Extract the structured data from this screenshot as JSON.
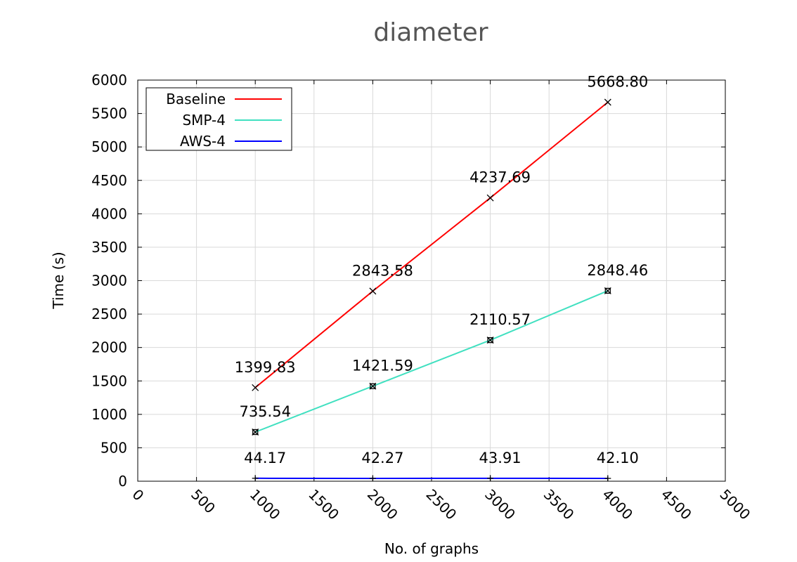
{
  "chart_data": {
    "type": "line",
    "title": "diameter",
    "xlabel": "No. of graphs",
    "ylabel": "Time (s)",
    "xlim": [
      0,
      5000
    ],
    "ylim": [
      0,
      6000
    ],
    "xticks": [
      "0",
      "500",
      "1000",
      "1500",
      "2000",
      "2500",
      "3000",
      "3500",
      "4000",
      "4500",
      "5000"
    ],
    "yticks": [
      "0",
      "500",
      "1000",
      "1500",
      "2000",
      "2500",
      "3000",
      "3500",
      "4000",
      "4500",
      "5000",
      "5500",
      "6000"
    ],
    "grid": true,
    "legend_position": "top-left",
    "x": [
      1000,
      2000,
      3000,
      4000
    ],
    "series": [
      {
        "name": "Baseline",
        "color": "#ff0000",
        "marker": "x",
        "values": [
          1399.83,
          2843.58,
          4237.69,
          5668.8
        ],
        "labels": [
          "1399.83",
          "2843.58",
          "4237.69",
          "5668.80"
        ]
      },
      {
        "name": "SMP-4",
        "color": "#40e0c0",
        "marker": "square-x",
        "values": [
          735.54,
          1421.59,
          2110.57,
          2848.46
        ],
        "labels": [
          "735.54",
          "1421.59",
          "2110.57",
          "2848.46"
        ]
      },
      {
        "name": "AWS-4",
        "color": "#0000ff",
        "marker": "plus",
        "values": [
          44.17,
          42.27,
          43.91,
          42.1
        ],
        "labels": [
          "44.17",
          "42.27",
          "43.91",
          "42.10"
        ]
      }
    ]
  }
}
